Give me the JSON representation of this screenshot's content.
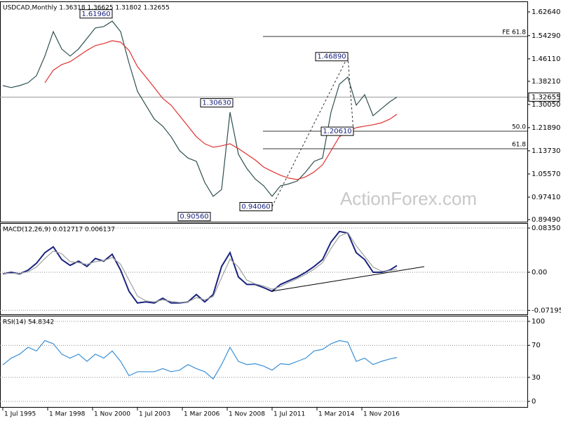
{
  "chart_data": [
    {
      "type": "line",
      "title": "USDCAD,Monthly 1.36318 1.36625 1.31802 1.32655",
      "watermark": "ActionForex.com",
      "xlim": [
        "1995-05-01",
        "2026-09-01"
      ],
      "x": [
        "1995-07-01",
        "1996-01-01",
        "1996-07-01",
        "1997-01-01",
        "1997-07-01",
        "1998-01-01",
        "1998-07-01",
        "1999-01-01",
        "1999-07-01",
        "2000-01-01",
        "2000-07-01",
        "2001-01-01",
        "2001-07-01",
        "2002-01-01",
        "2002-07-01",
        "2003-01-01",
        "2003-07-01",
        "2004-01-01",
        "2004-07-01",
        "2005-01-01",
        "2005-07-01",
        "2006-01-01",
        "2006-07-01",
        "2007-01-01",
        "2007-07-01",
        "2008-01-01",
        "2008-07-01",
        "2009-01-01",
        "2009-07-01",
        "2010-01-01",
        "2010-07-01",
        "2011-01-01",
        "2011-07-01",
        "2012-01-01",
        "2012-07-01",
        "2013-01-01",
        "2013-07-01",
        "2014-01-01",
        "2014-07-01",
        "2015-01-01",
        "2015-07-01",
        "2016-01-01",
        "2016-07-01",
        "2017-01-01",
        "2017-07-01",
        "2018-01-01",
        "2018-07-01",
        "2018-12-01"
      ],
      "series": [
        {
          "name": "USDCAD",
          "color": "#2f4f4f",
          "values": [
            1.367,
            1.36,
            1.367,
            1.377,
            1.402,
            1.471,
            1.557,
            1.496,
            1.471,
            1.496,
            1.533,
            1.57,
            1.575,
            1.594,
            1.557,
            1.446,
            1.347,
            1.298,
            1.249,
            1.224,
            1.187,
            1.138,
            1.112,
            1.1,
            1.026,
            0.977,
            1.001,
            1.273,
            1.125,
            1.075,
            1.038,
            1.014,
            0.977,
            1.014,
            1.021,
            1.031,
            1.063,
            1.1,
            1.112,
            1.273,
            1.372,
            1.397,
            1.298,
            1.335,
            1.261,
            1.286,
            1.31,
            1.3265
          ]
        },
        {
          "name": "MA",
          "color": "#e03030",
          "values": [
            null,
            null,
            null,
            null,
            null,
            1.377,
            1.421,
            1.441,
            1.451,
            1.471,
            1.491,
            1.508,
            1.515,
            1.525,
            1.52,
            1.491,
            1.434,
            1.397,
            1.36,
            1.322,
            1.298,
            1.261,
            1.224,
            1.187,
            1.162,
            1.15,
            1.155,
            1.162,
            1.145,
            1.125,
            1.105,
            1.08,
            1.065,
            1.051,
            1.041,
            1.036,
            1.046,
            1.063,
            1.088,
            1.137,
            1.187,
            1.204,
            1.219,
            1.224,
            1.229,
            1.236,
            1.249,
            1.266
          ]
        }
      ],
      "ylim": [
        0.8875,
        1.6635
      ],
      "yticks": [
        {
          "value": 0.8949,
          "label": "0.89490"
        },
        {
          "value": 0.9741,
          "label": "0.97410"
        },
        {
          "value": 1.0557,
          "label": "1.05570"
        },
        {
          "value": 1.1373,
          "label": "1.13730"
        },
        {
          "value": 1.2189,
          "label": "1.21890"
        },
        {
          "value": 1.3005,
          "label": "1.30050"
        },
        {
          "value": 1.3821,
          "label": "1.38210"
        },
        {
          "value": 1.4611,
          "label": "1.46110"
        },
        {
          "value": 1.5429,
          "label": "1.54290"
        },
        {
          "value": 1.6264,
          "label": "1.62640"
        }
      ],
      "grid": false,
      "last": 1.32655,
      "levels": [
        {
          "label": "FE 61.8",
          "value": 1.5399
        },
        {
          "label": "50.0",
          "value": 1.2063
        },
        {
          "label": "61.8",
          "value": 1.1446
        }
      ],
      "annotations": [
        {
          "label": "1.61960",
          "value": 1.6196,
          "x": "2002-01-01"
        },
        {
          "label": "1.30630",
          "value": 1.3063,
          "x": "2009-03-01"
        },
        {
          "label": "1.46890",
          "value": 1.4689,
          "x": "2016-01-01"
        },
        {
          "label": "1.20610",
          "value": 1.2061,
          "x": "2016-05-01"
        },
        {
          "label": "0.90560",
          "value": 0.9056,
          "x": "2007-11-01"
        },
        {
          "label": "0.94060",
          "value": 0.9406,
          "x": "2011-07-01"
        }
      ]
    },
    {
      "type": "line",
      "title": "MACD(12,26,9) 0.012717 0.006137",
      "xlim": [
        "1995-05-01",
        "2026-09-01"
      ],
      "x": [
        "1995-07-01",
        "1996-01-01",
        "1996-07-01",
        "1997-01-01",
        "1997-07-01",
        "1998-01-01",
        "1998-07-01",
        "1999-01-01",
        "1999-07-01",
        "2000-01-01",
        "2000-07-01",
        "2001-01-01",
        "2001-07-01",
        "2002-01-01",
        "2002-07-01",
        "2003-01-01",
        "2003-07-01",
        "2004-01-01",
        "2004-07-01",
        "2005-01-01",
        "2005-07-01",
        "2006-01-01",
        "2006-07-01",
        "2007-01-01",
        "2007-07-01",
        "2008-01-01",
        "2008-07-01",
        "2009-01-01",
        "2009-07-01",
        "2010-01-01",
        "2010-07-01",
        "2011-01-01",
        "2011-07-01",
        "2012-01-01",
        "2012-07-01",
        "2013-01-01",
        "2013-07-01",
        "2014-01-01",
        "2014-07-01",
        "2015-01-01",
        "2015-07-01",
        "2016-01-01",
        "2016-07-01",
        "2017-01-01",
        "2017-07-01",
        "2018-01-01",
        "2018-07-01",
        "2018-12-01"
      ],
      "series": [
        {
          "name": "MACD",
          "color": "#1a237e",
          "values": [
            -0.003,
            0,
            -0.003,
            0.004,
            0.017,
            0.037,
            0.048,
            0.024,
            0.013,
            0.021,
            0.011,
            0.026,
            0.021,
            0.034,
            0.004,
            -0.036,
            -0.058,
            -0.056,
            -0.058,
            -0.049,
            -0.058,
            -0.058,
            -0.056,
            -0.042,
            -0.056,
            -0.042,
            0.011,
            0.037,
            -0.009,
            -0.023,
            -0.023,
            -0.029,
            -0.036,
            -0.023,
            -0.016,
            -0.009,
            0,
            0.011,
            0.024,
            0.057,
            0.077,
            0.074,
            0.037,
            0.024,
            0,
            0,
            0.004,
            0.0127
          ]
        },
        {
          "name": "Signal",
          "color": "#a0a0a0",
          "values": [
            -0.002,
            -0.002,
            -0.002,
            0.001,
            0.01,
            0.026,
            0.04,
            0.035,
            0.02,
            0.018,
            0.015,
            0.02,
            0.022,
            0.028,
            0.015,
            -0.015,
            -0.045,
            -0.054,
            -0.056,
            -0.052,
            -0.055,
            -0.057,
            -0.056,
            -0.048,
            -0.052,
            -0.046,
            -0.01,
            0.025,
            0.01,
            -0.015,
            -0.022,
            -0.026,
            -0.032,
            -0.027,
            -0.019,
            -0.012,
            -0.004,
            0.006,
            0.018,
            0.045,
            0.068,
            0.075,
            0.05,
            0.03,
            0.01,
            0.002,
            0.003,
            0.0061
          ]
        }
      ],
      "ylim": [
        -0.0795,
        0.0928
      ],
      "yticks": [
        -0.07195,
        {
          "value": 0,
          "label": "0.00"
        },
        0.083505
      ],
      "grid": true
    },
    {
      "type": "line",
      "title": "RSI(14) 54.8342",
      "xlim": [
        "1995-05-01",
        "2026-09-01"
      ],
      "x": [
        "1995-07-01",
        "1996-01-01",
        "1996-07-01",
        "1997-01-01",
        "1997-07-01",
        "1998-01-01",
        "1998-07-01",
        "1999-01-01",
        "1999-07-01",
        "2000-01-01",
        "2000-07-01",
        "2001-01-01",
        "2001-07-01",
        "2002-01-01",
        "2002-07-01",
        "2003-01-01",
        "2003-07-01",
        "2004-01-01",
        "2004-07-01",
        "2005-01-01",
        "2005-07-01",
        "2006-01-01",
        "2006-07-01",
        "2007-01-01",
        "2007-07-01",
        "2008-01-01",
        "2008-07-01",
        "2009-01-01",
        "2009-07-01",
        "2010-01-01",
        "2010-07-01",
        "2011-01-01",
        "2011-07-01",
        "2012-01-01",
        "2012-07-01",
        "2013-01-01",
        "2013-07-01",
        "2014-01-01",
        "2014-07-01",
        "2015-01-01",
        "2015-07-01",
        "2016-01-01",
        "2016-07-01",
        "2017-01-01",
        "2017-07-01",
        "2018-01-01",
        "2018-07-01",
        "2018-12-01"
      ],
      "series": [
        {
          "name": "RSI",
          "color": "#3a8fd8",
          "values": [
            45.6,
            54,
            59,
            67.5,
            63,
            76,
            72,
            59,
            54,
            59,
            50,
            59,
            54,
            63,
            50,
            32,
            37,
            37,
            37,
            41,
            37,
            39,
            46,
            41,
            37,
            28,
            46,
            67.5,
            50,
            46,
            47,
            44,
            39,
            47,
            46,
            50,
            54,
            63,
            65,
            72,
            76,
            74,
            50,
            54,
            46,
            50,
            53,
            54.8342
          ]
        }
      ],
      "ylim": [
        -7,
        107
      ],
      "yticks": [
        0,
        30,
        70,
        100
      ],
      "grid": true,
      "xticks": [
        {
          "value": "1995-07-01",
          "label": "1 Jul 1995"
        },
        {
          "value": "1998-03-01",
          "label": "1 Mar 1998"
        },
        {
          "value": "2000-11-01",
          "label": "1 Nov 2000"
        },
        {
          "value": "2003-07-01",
          "label": "1 Jul 2003"
        },
        {
          "value": "2006-03-01",
          "label": "1 Mar 2006"
        },
        {
          "value": "2008-11-01",
          "label": "1 Nov 2008"
        },
        {
          "value": "2011-07-01",
          "label": "1 Jul 2011"
        },
        {
          "value": "2014-03-01",
          "label": "1 Mar 2014"
        },
        {
          "value": "2016-11-01",
          "label": "1 Nov 2016"
        }
      ]
    }
  ]
}
